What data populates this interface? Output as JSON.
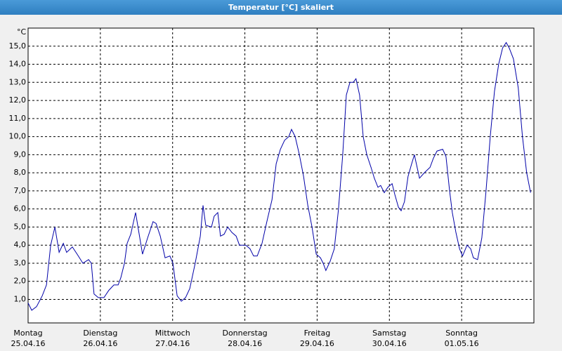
{
  "window_title": "Temperatur [°C] skaliert",
  "chart_data": {
    "type": "line",
    "y_unit": "°C",
    "xlim": [
      0,
      168
    ],
    "ylim": [
      -0.3,
      16.0
    ],
    "grid": true,
    "xticks": [
      {
        "value": 0,
        "label": "Montag\n25.04.16"
      },
      {
        "value": 24,
        "label": "Dienstag\n26.04.16"
      },
      {
        "value": 48,
        "label": "Mittwoch\n27.04.16"
      },
      {
        "value": 72,
        "label": "Donnerstag\n28.04.16"
      },
      {
        "value": 96,
        "label": "Freitag\n29.04.16"
      },
      {
        "value": 120,
        "label": "Samstag\n30.04.16"
      },
      {
        "value": 144,
        "label": "Sonntag\n01.05.16"
      }
    ],
    "yticks": [
      {
        "value": 1,
        "label": "1,0"
      },
      {
        "value": 2,
        "label": "2,0"
      },
      {
        "value": 3,
        "label": "3,0"
      },
      {
        "value": 4,
        "label": "4,0"
      },
      {
        "value": 5,
        "label": "5,0"
      },
      {
        "value": 6,
        "label": "6,0"
      },
      {
        "value": 7,
        "label": "7,0"
      },
      {
        "value": 8,
        "label": "8,0"
      },
      {
        "value": 9,
        "label": "9,0"
      },
      {
        "value": 10,
        "label": "10,0"
      },
      {
        "value": 11,
        "label": "11,0"
      },
      {
        "value": 12,
        "label": "12,0"
      },
      {
        "value": 13,
        "label": "13,0"
      },
      {
        "value": 14,
        "label": "14,0"
      },
      {
        "value": 15,
        "label": "15,0"
      }
    ],
    "x": [
      0,
      1.2,
      2.8,
      4.7,
      6.1,
      7.5,
      8.9,
      10.3,
      11.7,
      12.8,
      14.7,
      16.3,
      18.2,
      20.1,
      21,
      21.9,
      23.3,
      25.2,
      26.8,
      28.5,
      29.9,
      30.8,
      32,
      32.9,
      34.1,
      35.7,
      36.9,
      38,
      39.7,
      41.5,
      42.5,
      43.9,
      45.5,
      47.1,
      48.1,
      49.5,
      50.9,
      52.3,
      53.7,
      55.5,
      57.2,
      58.1,
      59,
      60.9,
      61.8,
      63,
      63.9,
      65.1,
      66.3,
      67.7,
      69.1,
      70.2,
      72.3,
      73.7,
      74.9,
      76.1,
      77.7,
      79.3,
      81,
      82.4,
      83.8,
      85.2,
      86.6,
      87.5,
      88.7,
      90.1,
      91.5,
      92.9,
      94.3,
      95.7,
      97.1,
      98,
      98.9,
      100.3,
      101.7,
      103.1,
      104.5,
      105.7,
      106.9,
      108,
      108.9,
      110.1,
      111.3,
      112.5,
      113.9,
      115,
      116.2,
      117.1,
      118.3,
      119.5,
      120.9,
      121.8,
      123,
      123.9,
      125,
      126.2,
      127.4,
      128.3,
      130,
      131.6,
      133.5,
      134.6,
      135.8,
      137.7,
      138.8,
      140,
      140.9,
      142.1,
      143.3,
      144.3,
      145.8,
      147,
      147.9,
      149.3,
      150.7,
      152.1,
      153.5,
      154.9,
      156.3,
      157.6,
      158.8,
      159.8,
      161.2,
      162.8,
      164.2,
      165.6,
      166.9
    ],
    "series": [
      {
        "color": "#0000a8",
        "values": [
          0.8,
          0.4,
          0.6,
          1.2,
          1.8,
          4.0,
          5.0,
          3.6,
          4.1,
          3.6,
          3.9,
          3.5,
          3.0,
          3.2,
          3.0,
          1.3,
          1.1,
          1.1,
          1.5,
          1.8,
          1.8,
          2.2,
          3.0,
          4.1,
          4.6,
          5.8,
          4.6,
          3.5,
          4.4,
          5.3,
          5.2,
          4.5,
          3.3,
          3.4,
          3.0,
          1.2,
          0.9,
          1.1,
          1.6,
          3.0,
          4.5,
          6.2,
          5.1,
          5.0,
          5.6,
          5.8,
          4.5,
          4.6,
          5.0,
          4.7,
          4.5,
          4.0,
          4.0,
          3.8,
          3.4,
          3.4,
          4.1,
          5.3,
          6.5,
          8.5,
          9.3,
          9.8,
          10.0,
          10.4,
          10.0,
          9.0,
          7.8,
          6.2,
          5.0,
          3.5,
          3.3,
          3.0,
          2.6,
          3.1,
          3.8,
          6.0,
          9.0,
          12.3,
          13.0,
          13.0,
          13.2,
          12.3,
          10.0,
          9.0,
          8.3,
          7.7,
          7.2,
          7.3,
          6.9,
          7.2,
          7.4,
          6.8,
          6.1,
          5.9,
          6.4,
          7.8,
          8.5,
          9.0,
          7.7,
          8.0,
          8.3,
          8.8,
          9.2,
          9.3,
          8.9,
          7.0,
          5.8,
          4.7,
          3.8,
          3.4,
          4.0,
          3.8,
          3.3,
          3.2,
          4.4,
          7.0,
          10.0,
          12.5,
          14.0,
          14.9,
          15.2,
          14.9,
          14.3,
          12.7,
          10.0,
          8.0,
          6.9
        ]
      }
    ]
  }
}
